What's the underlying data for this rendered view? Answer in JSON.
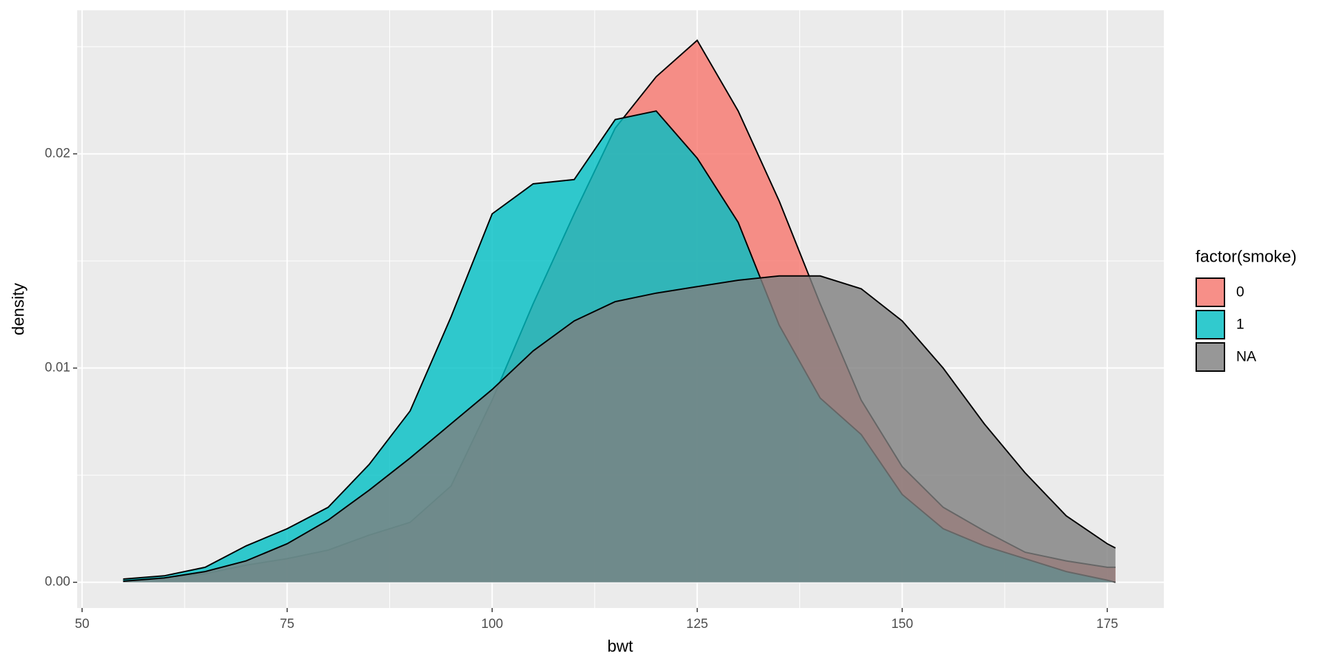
{
  "chart_data": {
    "type": "density",
    "x_label": "bwt",
    "y_label": "density",
    "legend_title": "factor(smoke)",
    "legend_position": "right",
    "grid": true,
    "alpha": 0.8,
    "xlim": [
      49.4,
      181.9
    ],
    "ylim": [
      -0.0012,
      0.0267
    ],
    "xticks": [
      50,
      75,
      100,
      125,
      150,
      175
    ],
    "yticks": [
      {
        "value": 0,
        "label": "0.00"
      },
      {
        "value": 0.01,
        "label": "0.01"
      },
      {
        "value": 0.02,
        "label": "0.02"
      }
    ],
    "x": [
      55,
      60,
      65,
      70,
      75,
      80,
      85,
      90,
      95,
      100,
      105,
      110,
      115,
      120,
      125,
      130,
      135,
      140,
      145,
      150,
      155,
      160,
      165,
      170,
      175,
      176
    ],
    "series": [
      {
        "name": "0",
        "color": "#F8766D",
        "values": [
          0.0001,
          0.0002,
          0.0004,
          0.0008,
          0.0011,
          0.0015,
          0.0022,
          0.0028,
          0.0045,
          0.0085,
          0.013,
          0.0172,
          0.0212,
          0.0236,
          0.0253,
          0.022,
          0.0178,
          0.013,
          0.0085,
          0.0054,
          0.0035,
          0.0024,
          0.0014,
          0.001,
          0.0007,
          0.0007
        ]
      },
      {
        "name": "1",
        "color": "#00BFC4",
        "values": [
          0.00015,
          0.0003,
          0.0007,
          0.0017,
          0.0025,
          0.0035,
          0.0055,
          0.008,
          0.0124,
          0.0172,
          0.0186,
          0.0188,
          0.0216,
          0.022,
          0.0198,
          0.0168,
          0.012,
          0.0086,
          0.0069,
          0.0041,
          0.0025,
          0.0017,
          0.0011,
          0.0005,
          0.0001,
          0
        ]
      },
      {
        "name": "NA",
        "color": "#7F7F7F",
        "values": [
          5e-05,
          0.0002,
          0.0005,
          0.001,
          0.0018,
          0.0029,
          0.0043,
          0.0058,
          0.0074,
          0.009,
          0.0108,
          0.0122,
          0.0131,
          0.0135,
          0.0138,
          0.0141,
          0.0143,
          0.0143,
          0.0137,
          0.0122,
          0.01,
          0.0074,
          0.0051,
          0.0031,
          0.0018,
          0.0016
        ]
      }
    ]
  }
}
